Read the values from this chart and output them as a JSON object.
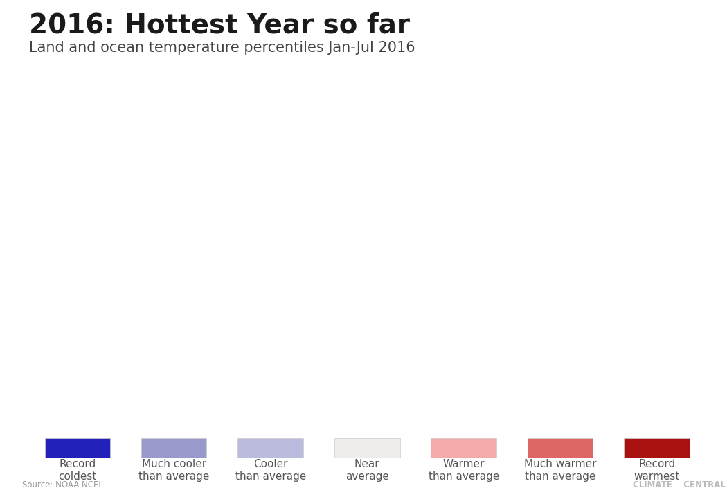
{
  "title": "2016: Hottest Year so far",
  "subtitle": "Land and ocean temperature percentiles Jan-Jul 2016",
  "source": "Source: NOAA NCEI",
  "branding": "CLIMATE    CENTRAL",
  "background_color": "#ffffff",
  "map_bg_color": "#b0b0b0",
  "legend_items": [
    {
      "label": "Record\ncoldest",
      "color": "#2222bb"
    },
    {
      "label": "Much cooler\nthan average",
      "color": "#9999cc"
    },
    {
      "label": "Cooler\nthan average",
      "color": "#bbbbdd"
    },
    {
      "label": "Near\naverage",
      "color": "#f0ecec"
    },
    {
      "label": "Warmer\nthan average",
      "color": "#f5aaaa"
    },
    {
      "label": "Much warmer\nthan average",
      "color": "#dd6666"
    },
    {
      "label": "Record\nwarmest",
      "color": "#aa1111"
    }
  ],
  "colors_map": [
    "#2222bb",
    "#9999cc",
    "#bbbbdd",
    "#f0ecec",
    "#f5aaaa",
    "#dd6666",
    "#aa1111"
  ],
  "title_fontsize": 28,
  "subtitle_fontsize": 15,
  "legend_fontsize": 11
}
